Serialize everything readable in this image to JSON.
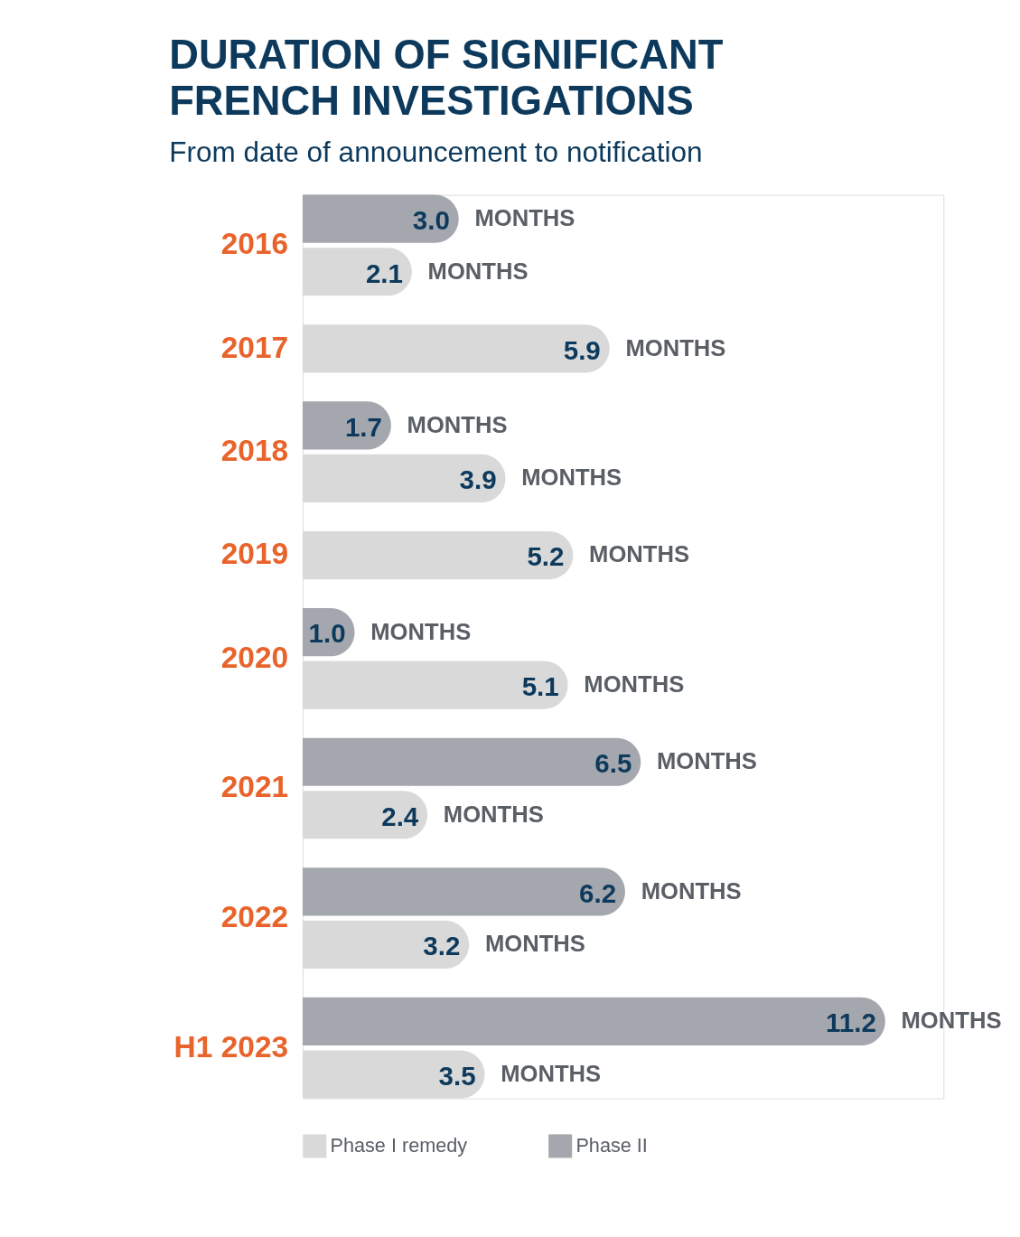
{
  "chart_data": {
    "type": "bar",
    "orientation": "horizontal",
    "title": "DURATION OF SIGNIFICANT\nFRENCH INVESTIGATIONS",
    "subtitle": "From date of announcement to notification",
    "categories": [
      "2016",
      "2017",
      "2018",
      "2019",
      "2020",
      "2021",
      "2022",
      "H1 2023"
    ],
    "series": [
      {
        "name": "Phase II",
        "color": "#a4a7ad",
        "values": [
          3.0,
          null,
          1.7,
          null,
          1.0,
          6.5,
          6.2,
          11.2
        ],
        "value_labels": [
          "3.0",
          null,
          "1.7",
          null,
          "1.0",
          "6.5",
          "6.2",
          "11.2"
        ]
      },
      {
        "name": "Phase I remedy",
        "color": "#d9d9d9",
        "values": [
          2.1,
          5.9,
          3.9,
          5.2,
          5.1,
          2.4,
          3.2,
          3.5
        ],
        "value_labels": [
          "2.1",
          "5.9",
          "3.9",
          "5.2",
          "5.1",
          "2.4",
          "3.2",
          "3.5"
        ]
      }
    ],
    "annotations": [
      "MONTHS"
    ],
    "legend": "bottom left",
    "tick_labels": false
  }
}
